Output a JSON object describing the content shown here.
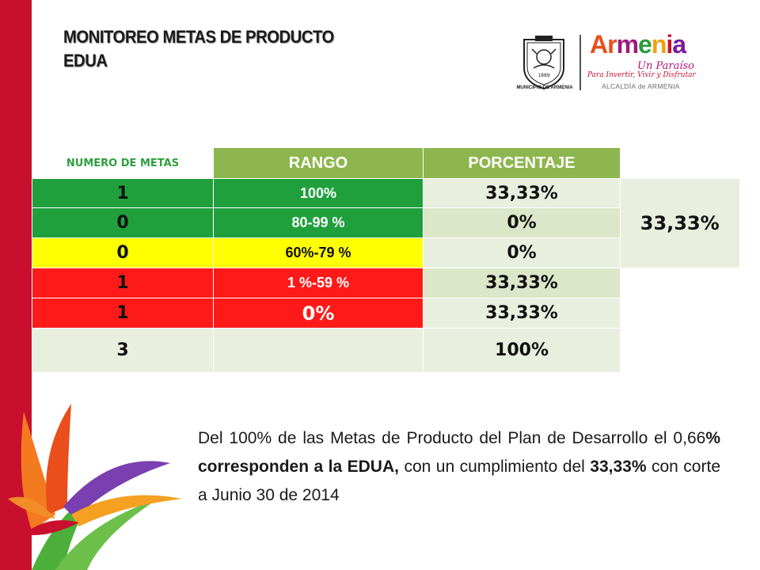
{
  "title": {
    "line1": "MONITOREO METAS DE PRODUCTO",
    "line2": "EDUA"
  },
  "logo": {
    "seal_caption": "MUNICIPIO DE ARMENIA",
    "seal_year": "1889",
    "brand_letters": [
      "A",
      "r",
      "m",
      "e",
      "n",
      "i",
      "a"
    ],
    "brand_colors": [
      "#e8501c",
      "#e8501c",
      "#9c1a7d",
      "#2a9c3c",
      "#f0a010",
      "#c8102e",
      "#7a1a9c"
    ],
    "brand_sub": "Un Paraíso",
    "brand_tagline": "Para Invertir, Vivir y Disfrutar",
    "brand_alcaldia": "ALCALDÍA de ARMENIA"
  },
  "table": {
    "headers": [
      "NUMERO DE METAS",
      "RANGO",
      "PORCENTAJE"
    ],
    "rows": [
      {
        "numero": "1",
        "rango": "100%",
        "porcentaje": "33,33%"
      },
      {
        "numero": "0",
        "rango": "80-99  %",
        "porcentaje": "0%"
      },
      {
        "numero": "0",
        "rango": "60%-79 %",
        "porcentaje": "0%"
      },
      {
        "numero": "1",
        "rango": "1  %-59 %",
        "porcentaje": "33,33%"
      },
      {
        "numero": "1",
        "rango": "0%",
        "porcentaje": "33,33%"
      },
      {
        "numero": "3",
        "rango": "",
        "porcentaje": "100%"
      }
    ],
    "cumplimiento": "33,33%",
    "colors": {
      "green": "#1fa03c",
      "yellow": "#ffff00",
      "red": "#ff1a1a",
      "header": "#8db64e"
    }
  },
  "paragraph": {
    "t1": "Del 100% de las Metas de Producto del Plan de Desarrollo el 0,66",
    "b1": "% corresponden a la EDUA,",
    "t2": " con un cumplimiento del  ",
    "b2": "33,33%",
    "t3": " con corte a Junio 30 de 2014"
  }
}
